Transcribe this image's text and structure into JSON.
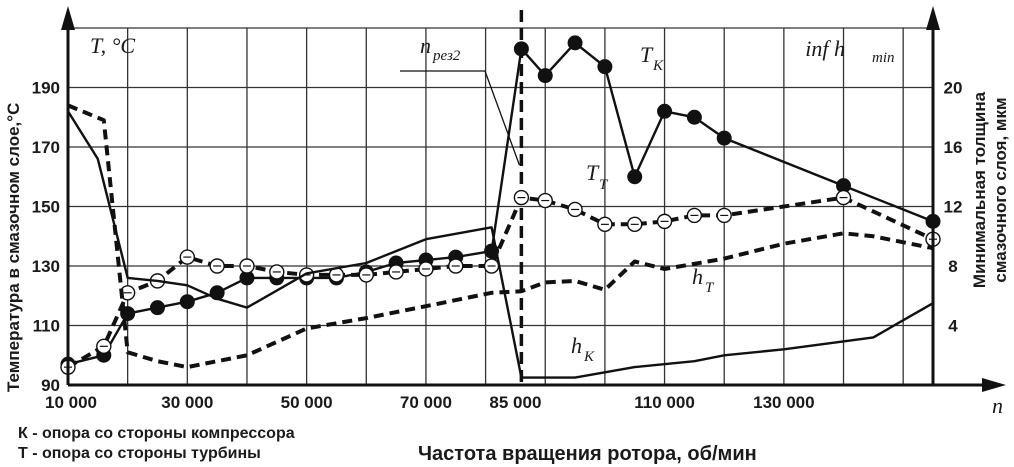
{
  "chart_data": {
    "type": "line",
    "xlabel": "Частота вращения ротора, об/мин",
    "x_axis_symbol": "n",
    "ylabel_left": "Температура в смазочном слое,",
    "ylabel_left_unit": "°C",
    "ylabel_right": [
      "Минимальная толщина",
      "смазочного слоя, мкм"
    ],
    "left_axis_symbol": "T, °C",
    "right_axis_symbol": {
      "main": "inf h",
      "sub": "min"
    },
    "x_tick_labels": [
      "10 000",
      "30 000",
      "50 000",
      "70 000",
      "85 000",
      "110 000",
      "130 000"
    ],
    "y_left_ticks": [
      90,
      110,
      130,
      150,
      170,
      190
    ],
    "y_left_range": [
      90,
      210
    ],
    "y_right_ticks": [
      4,
      8,
      12,
      16,
      20
    ],
    "y_right_range": [
      0,
      24
    ],
    "x_range": [
      10000,
      155000
    ],
    "resonance": {
      "x": 86000,
      "label_main": "n",
      "label_sub": "рез2"
    },
    "legend": [
      "К - опора со стороны компрессора",
      "Т - опора со стороны турбины"
    ],
    "series": [
      {
        "name": "T_K",
        "label_main": "T",
        "label_sub": "K",
        "axis": "left",
        "style": "solid-filled-markers",
        "x": [
          10000,
          16000,
          20000,
          25000,
          30000,
          35000,
          40000,
          45000,
          50000,
          55000,
          60000,
          65000,
          70000,
          75000,
          81000,
          86000,
          90000,
          95000,
          100000,
          105000,
          110000,
          115000,
          120000,
          140000,
          155000
        ],
        "y": [
          97,
          100,
          114,
          116,
          118,
          121,
          126,
          126,
          126,
          126,
          128,
          131,
          132,
          133,
          135,
          203,
          194,
          205,
          197,
          160,
          182,
          180,
          173,
          157,
          145
        ]
      },
      {
        "name": "T_T",
        "label_main": "T",
        "label_sub": "T",
        "axis": "left",
        "style": "dashed-open-markers",
        "x": [
          10000,
          16000,
          20000,
          25000,
          30000,
          35000,
          40000,
          45000,
          50000,
          55000,
          60000,
          65000,
          70000,
          75000,
          81000,
          86000,
          90000,
          95000,
          100000,
          105000,
          110000,
          115000,
          120000,
          140000,
          155000
        ],
        "y": [
          96,
          103,
          121,
          125,
          133,
          130,
          130,
          128,
          127,
          127,
          127,
          128,
          129,
          130,
          130,
          153,
          152,
          149,
          144,
          144,
          145,
          147,
          147,
          153,
          139
        ]
      },
      {
        "name": "h_K",
        "label_main": "h",
        "label_sub": "K",
        "axis": "right",
        "style": "solid",
        "x": [
          10000,
          15000,
          20000,
          25000,
          30000,
          35000,
          40000,
          50000,
          60000,
          70000,
          81000,
          86000,
          95000,
          105000,
          115000,
          120000,
          130000,
          145000,
          155000
        ],
        "y": [
          18.4,
          15.2,
          7.2,
          7.0,
          6.7,
          5.8,
          5.2,
          7.5,
          8.2,
          9.8,
          10.6,
          0.5,
          0.5,
          1.2,
          1.6,
          2.0,
          2.4,
          3.2,
          5.5
        ]
      },
      {
        "name": "h_T",
        "label_main": "h",
        "label_sub": "T",
        "axis": "right",
        "style": "dashed",
        "x": [
          10000,
          16000,
          20000,
          25000,
          30000,
          40000,
          50000,
          60000,
          70000,
          81000,
          86000,
          90000,
          95000,
          100000,
          105000,
          110000,
          120000,
          130000,
          140000,
          145000,
          155000
        ],
        "y": [
          18.8,
          17.8,
          2.2,
          1.6,
          1.2,
          2.0,
          3.8,
          4.5,
          5.3,
          6.2,
          6.3,
          6.9,
          7.0,
          6.4,
          8.3,
          7.8,
          8.5,
          9.5,
          10.2,
          10.0,
          9.2
        ]
      }
    ]
  }
}
